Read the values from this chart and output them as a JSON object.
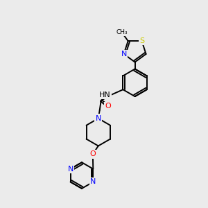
{
  "background_color": "#ebebeb",
  "bond_color": "#000000",
  "atom_colors": {
    "N": "#0000ff",
    "O": "#ff0000",
    "S": "#cccc00",
    "C": "#000000",
    "H": "#808080"
  },
  "figsize": [
    3.0,
    3.0
  ],
  "dpi": 100,
  "lw": 1.4,
  "fs": 7.5
}
